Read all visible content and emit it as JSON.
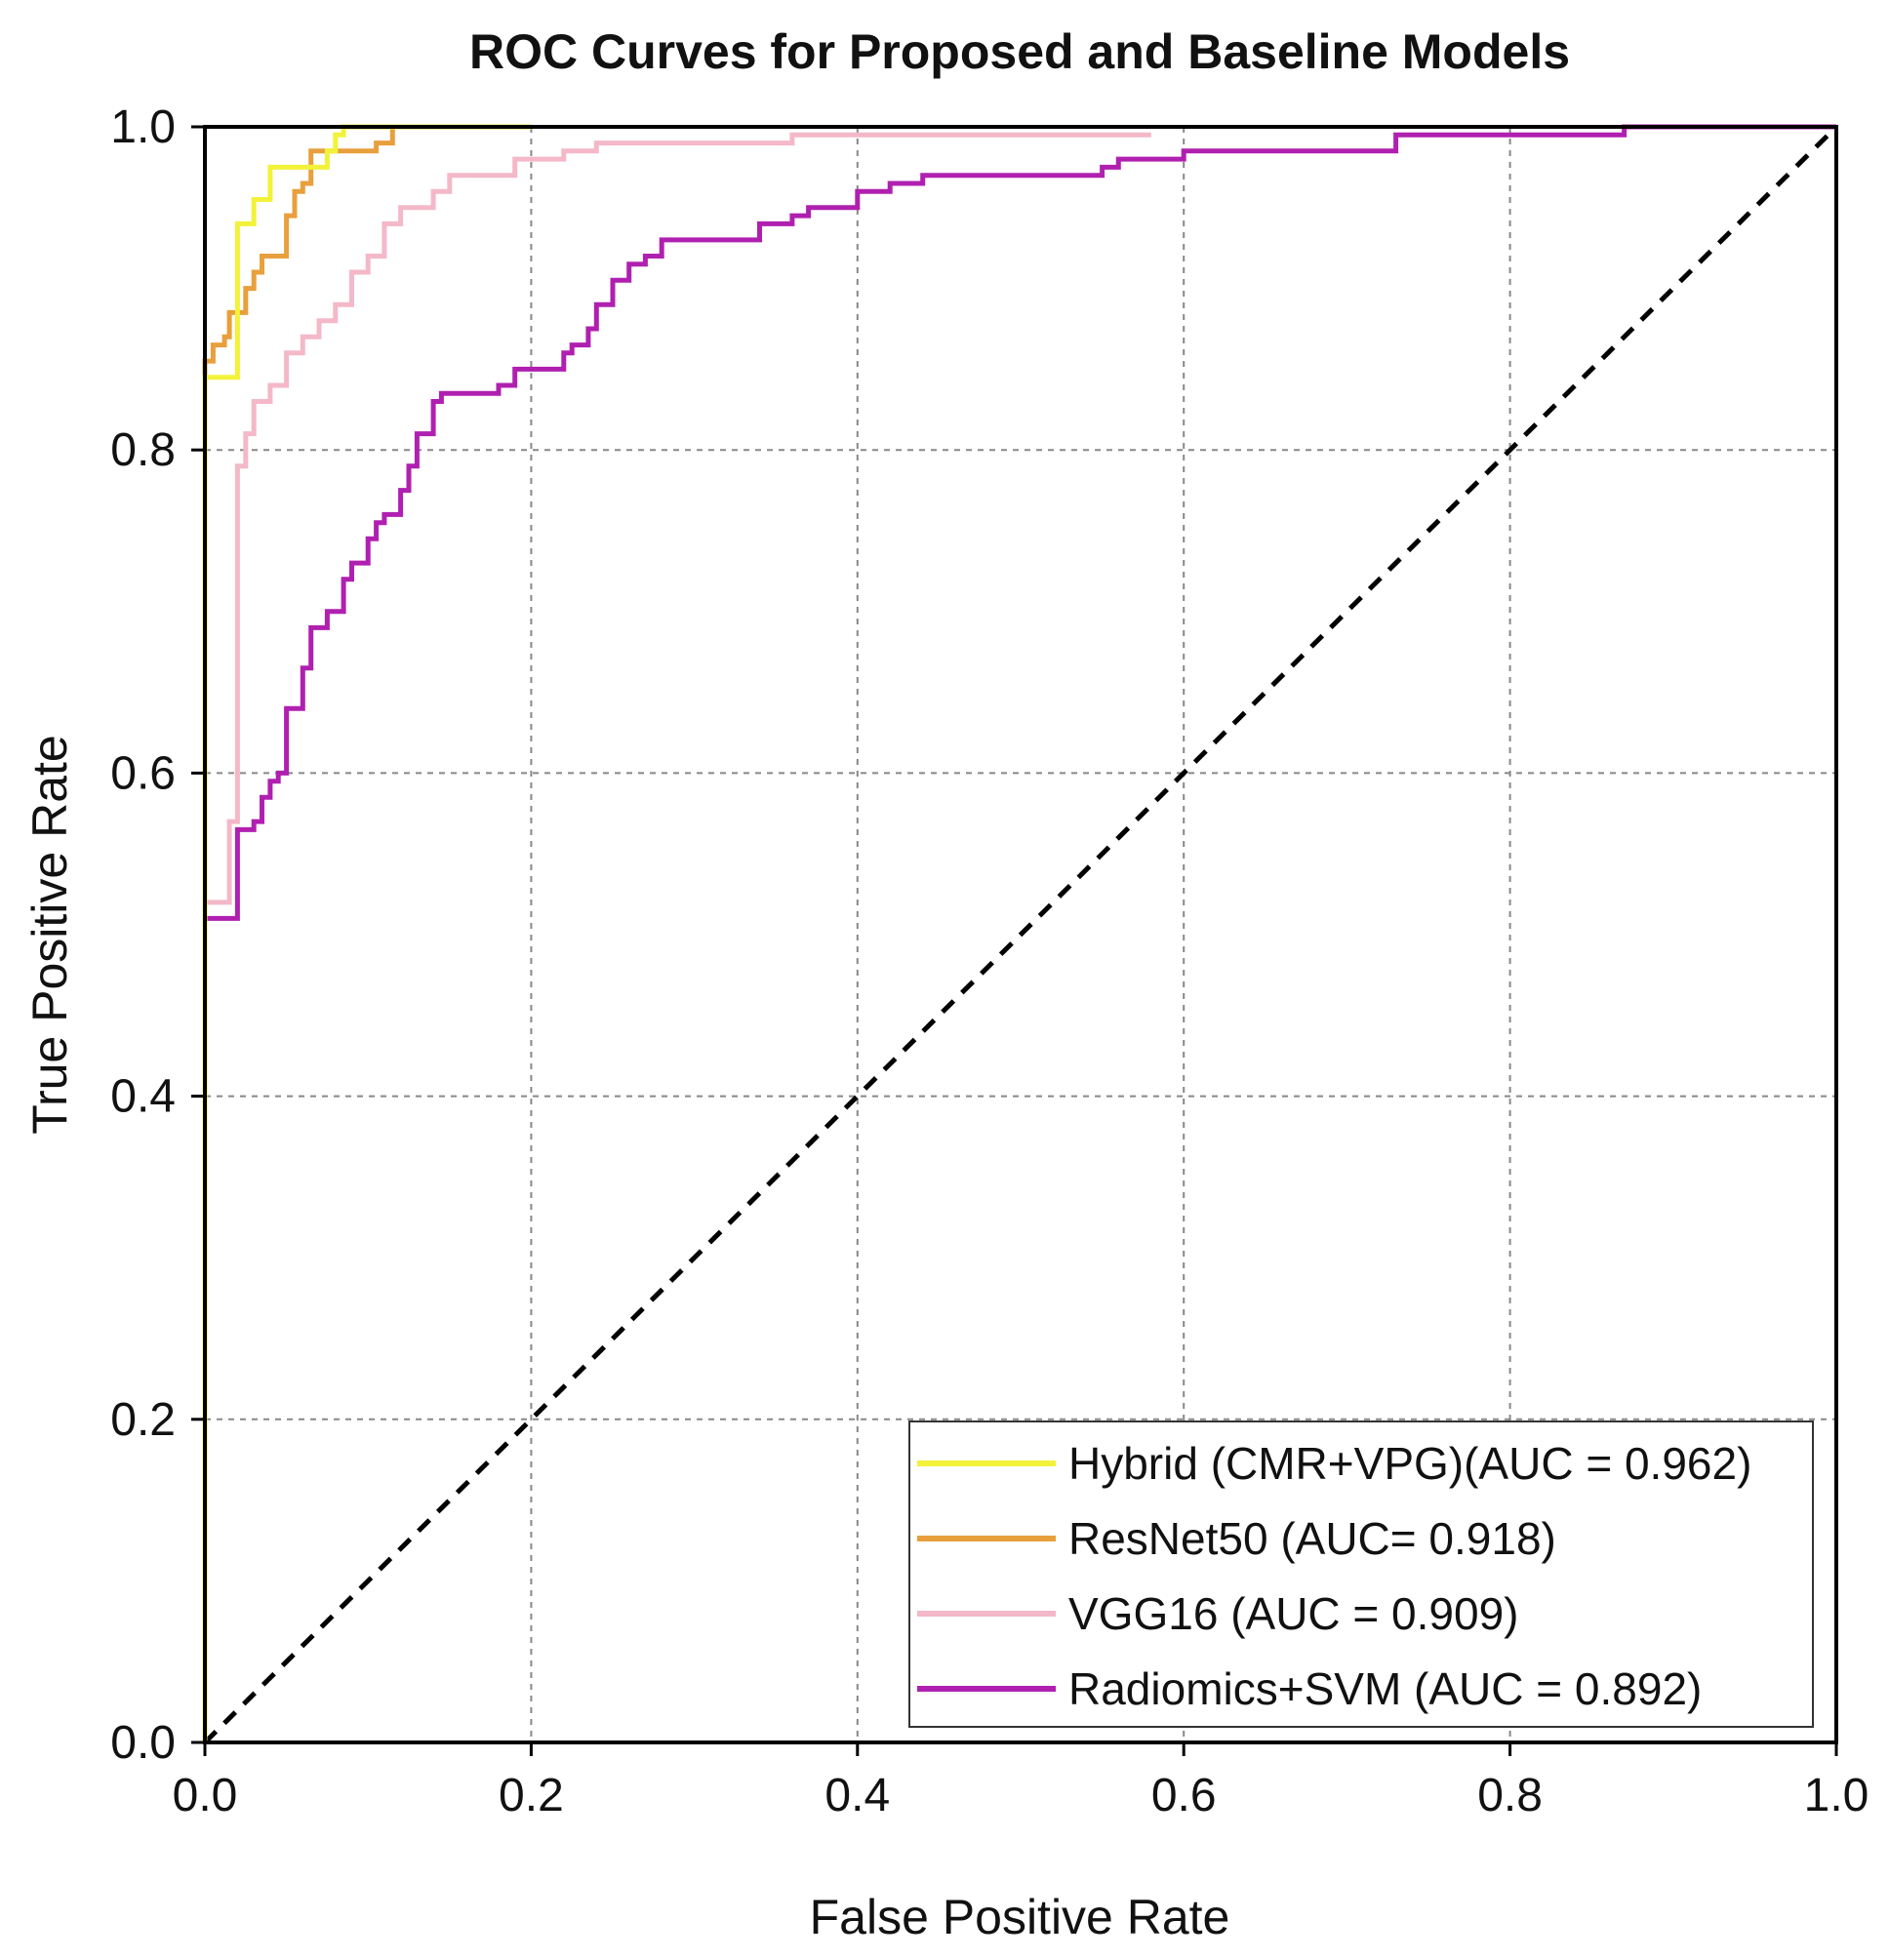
{
  "chart_data": {
    "type": "line",
    "title": "ROC Curves for Proposed and Baseline Models",
    "xlabel": "False Positive Rate",
    "ylabel": "True Positive Rate",
    "xlim": [
      0.0,
      1.0
    ],
    "ylim": [
      0.0,
      1.0
    ],
    "xticks": [
      "0.0",
      "0.2",
      "0.4",
      "0.6",
      "0.8",
      "1.0"
    ],
    "yticks": [
      "0.0",
      "0.2",
      "0.4",
      "0.6",
      "0.8",
      "1.0"
    ],
    "grid": true,
    "legend_position": "lower-right",
    "reference_line": {
      "name": "chance",
      "x": [
        0.0,
        1.0
      ],
      "y": [
        0.0,
        1.0
      ],
      "color": "#000000",
      "style": "dashed"
    },
    "series": [
      {
        "name": "Hybrid (CMR+VPG)(AUC = 0.962)",
        "color": "#f2f23a",
        "x": [
          0.0,
          0.0,
          0.02,
          0.02,
          0.03,
          0.03,
          0.04,
          0.04,
          0.075,
          0.075,
          0.08,
          0.08,
          0.085,
          0.085,
          0.2
        ],
        "y": [
          0.0,
          0.845,
          0.845,
          0.94,
          0.94,
          0.955,
          0.955,
          0.975,
          0.975,
          0.985,
          0.985,
          0.995,
          0.995,
          1.0,
          1.0
        ]
      },
      {
        "name": "ResNet50 (AUC= 0.918)",
        "color": "#e8a03c",
        "x": [
          0.0,
          0.0,
          0.005,
          0.005,
          0.012,
          0.012,
          0.015,
          0.015,
          0.025,
          0.025,
          0.03,
          0.03,
          0.035,
          0.035,
          0.05,
          0.05,
          0.055,
          0.055,
          0.06,
          0.06,
          0.065,
          0.065,
          0.105,
          0.105,
          0.115,
          0.115,
          0.12,
          0.12,
          0.2
        ],
        "y": [
          0.0,
          0.855,
          0.855,
          0.865,
          0.865,
          0.87,
          0.87,
          0.885,
          0.885,
          0.9,
          0.9,
          0.91,
          0.91,
          0.92,
          0.92,
          0.945,
          0.945,
          0.96,
          0.96,
          0.965,
          0.965,
          0.985,
          0.985,
          0.99,
          0.99,
          1.0,
          1.0,
          1.0,
          1.0
        ]
      },
      {
        "name": "VGG16 (AUC = 0.909)",
        "color": "#f4b8c8",
        "x": [
          0.0,
          0.0,
          0.015,
          0.015,
          0.02,
          0.02,
          0.025,
          0.025,
          0.03,
          0.03,
          0.04,
          0.04,
          0.05,
          0.05,
          0.06,
          0.06,
          0.07,
          0.07,
          0.08,
          0.08,
          0.09,
          0.09,
          0.1,
          0.1,
          0.11,
          0.11,
          0.12,
          0.12,
          0.14,
          0.14,
          0.15,
          0.15,
          0.19,
          0.19,
          0.22,
          0.22,
          0.24,
          0.24,
          0.36,
          0.36,
          0.58
        ],
        "y": [
          0.0,
          0.52,
          0.52,
          0.57,
          0.57,
          0.79,
          0.79,
          0.81,
          0.81,
          0.83,
          0.83,
          0.84,
          0.84,
          0.86,
          0.86,
          0.87,
          0.87,
          0.88,
          0.88,
          0.89,
          0.89,
          0.91,
          0.91,
          0.92,
          0.92,
          0.94,
          0.94,
          0.95,
          0.95,
          0.96,
          0.96,
          0.97,
          0.97,
          0.98,
          0.98,
          0.985,
          0.985,
          0.99,
          0.99,
          0.995,
          0.995
        ]
      },
      {
        "name": "Radiomics+SVM (AUC = 0.892)",
        "color": "#b020b0",
        "x": [
          0.0,
          0.0,
          0.02,
          0.02,
          0.03,
          0.03,
          0.035,
          0.035,
          0.04,
          0.04,
          0.045,
          0.045,
          0.05,
          0.05,
          0.06,
          0.06,
          0.065,
          0.065,
          0.075,
          0.075,
          0.085,
          0.085,
          0.09,
          0.09,
          0.1,
          0.1,
          0.105,
          0.105,
          0.11,
          0.11,
          0.12,
          0.12,
          0.125,
          0.125,
          0.13,
          0.13,
          0.14,
          0.14,
          0.145,
          0.145,
          0.18,
          0.18,
          0.19,
          0.19,
          0.22,
          0.22,
          0.225,
          0.225,
          0.235,
          0.235,
          0.24,
          0.24,
          0.25,
          0.25,
          0.26,
          0.26,
          0.27,
          0.27,
          0.28,
          0.28,
          0.34,
          0.34,
          0.36,
          0.36,
          0.37,
          0.37,
          0.4,
          0.4,
          0.42,
          0.42,
          0.44,
          0.44,
          0.55,
          0.55,
          0.56,
          0.56,
          0.6,
          0.6,
          0.73,
          0.73,
          0.87,
          0.87,
          1.0
        ],
        "y": [
          0.0,
          0.51,
          0.51,
          0.565,
          0.565,
          0.57,
          0.57,
          0.585,
          0.585,
          0.595,
          0.595,
          0.6,
          0.6,
          0.64,
          0.64,
          0.665,
          0.665,
          0.69,
          0.69,
          0.7,
          0.7,
          0.72,
          0.72,
          0.73,
          0.73,
          0.745,
          0.745,
          0.755,
          0.755,
          0.76,
          0.76,
          0.775,
          0.775,
          0.79,
          0.79,
          0.81,
          0.81,
          0.83,
          0.83,
          0.835,
          0.835,
          0.84,
          0.84,
          0.85,
          0.85,
          0.86,
          0.86,
          0.865,
          0.865,
          0.875,
          0.875,
          0.89,
          0.89,
          0.905,
          0.905,
          0.915,
          0.915,
          0.92,
          0.92,
          0.93,
          0.93,
          0.94,
          0.94,
          0.945,
          0.945,
          0.95,
          0.95,
          0.96,
          0.96,
          0.965,
          0.965,
          0.97,
          0.97,
          0.975,
          0.975,
          0.98,
          0.98,
          0.985,
          0.985,
          0.995,
          0.995,
          1.0,
          1.0
        ]
      }
    ]
  }
}
